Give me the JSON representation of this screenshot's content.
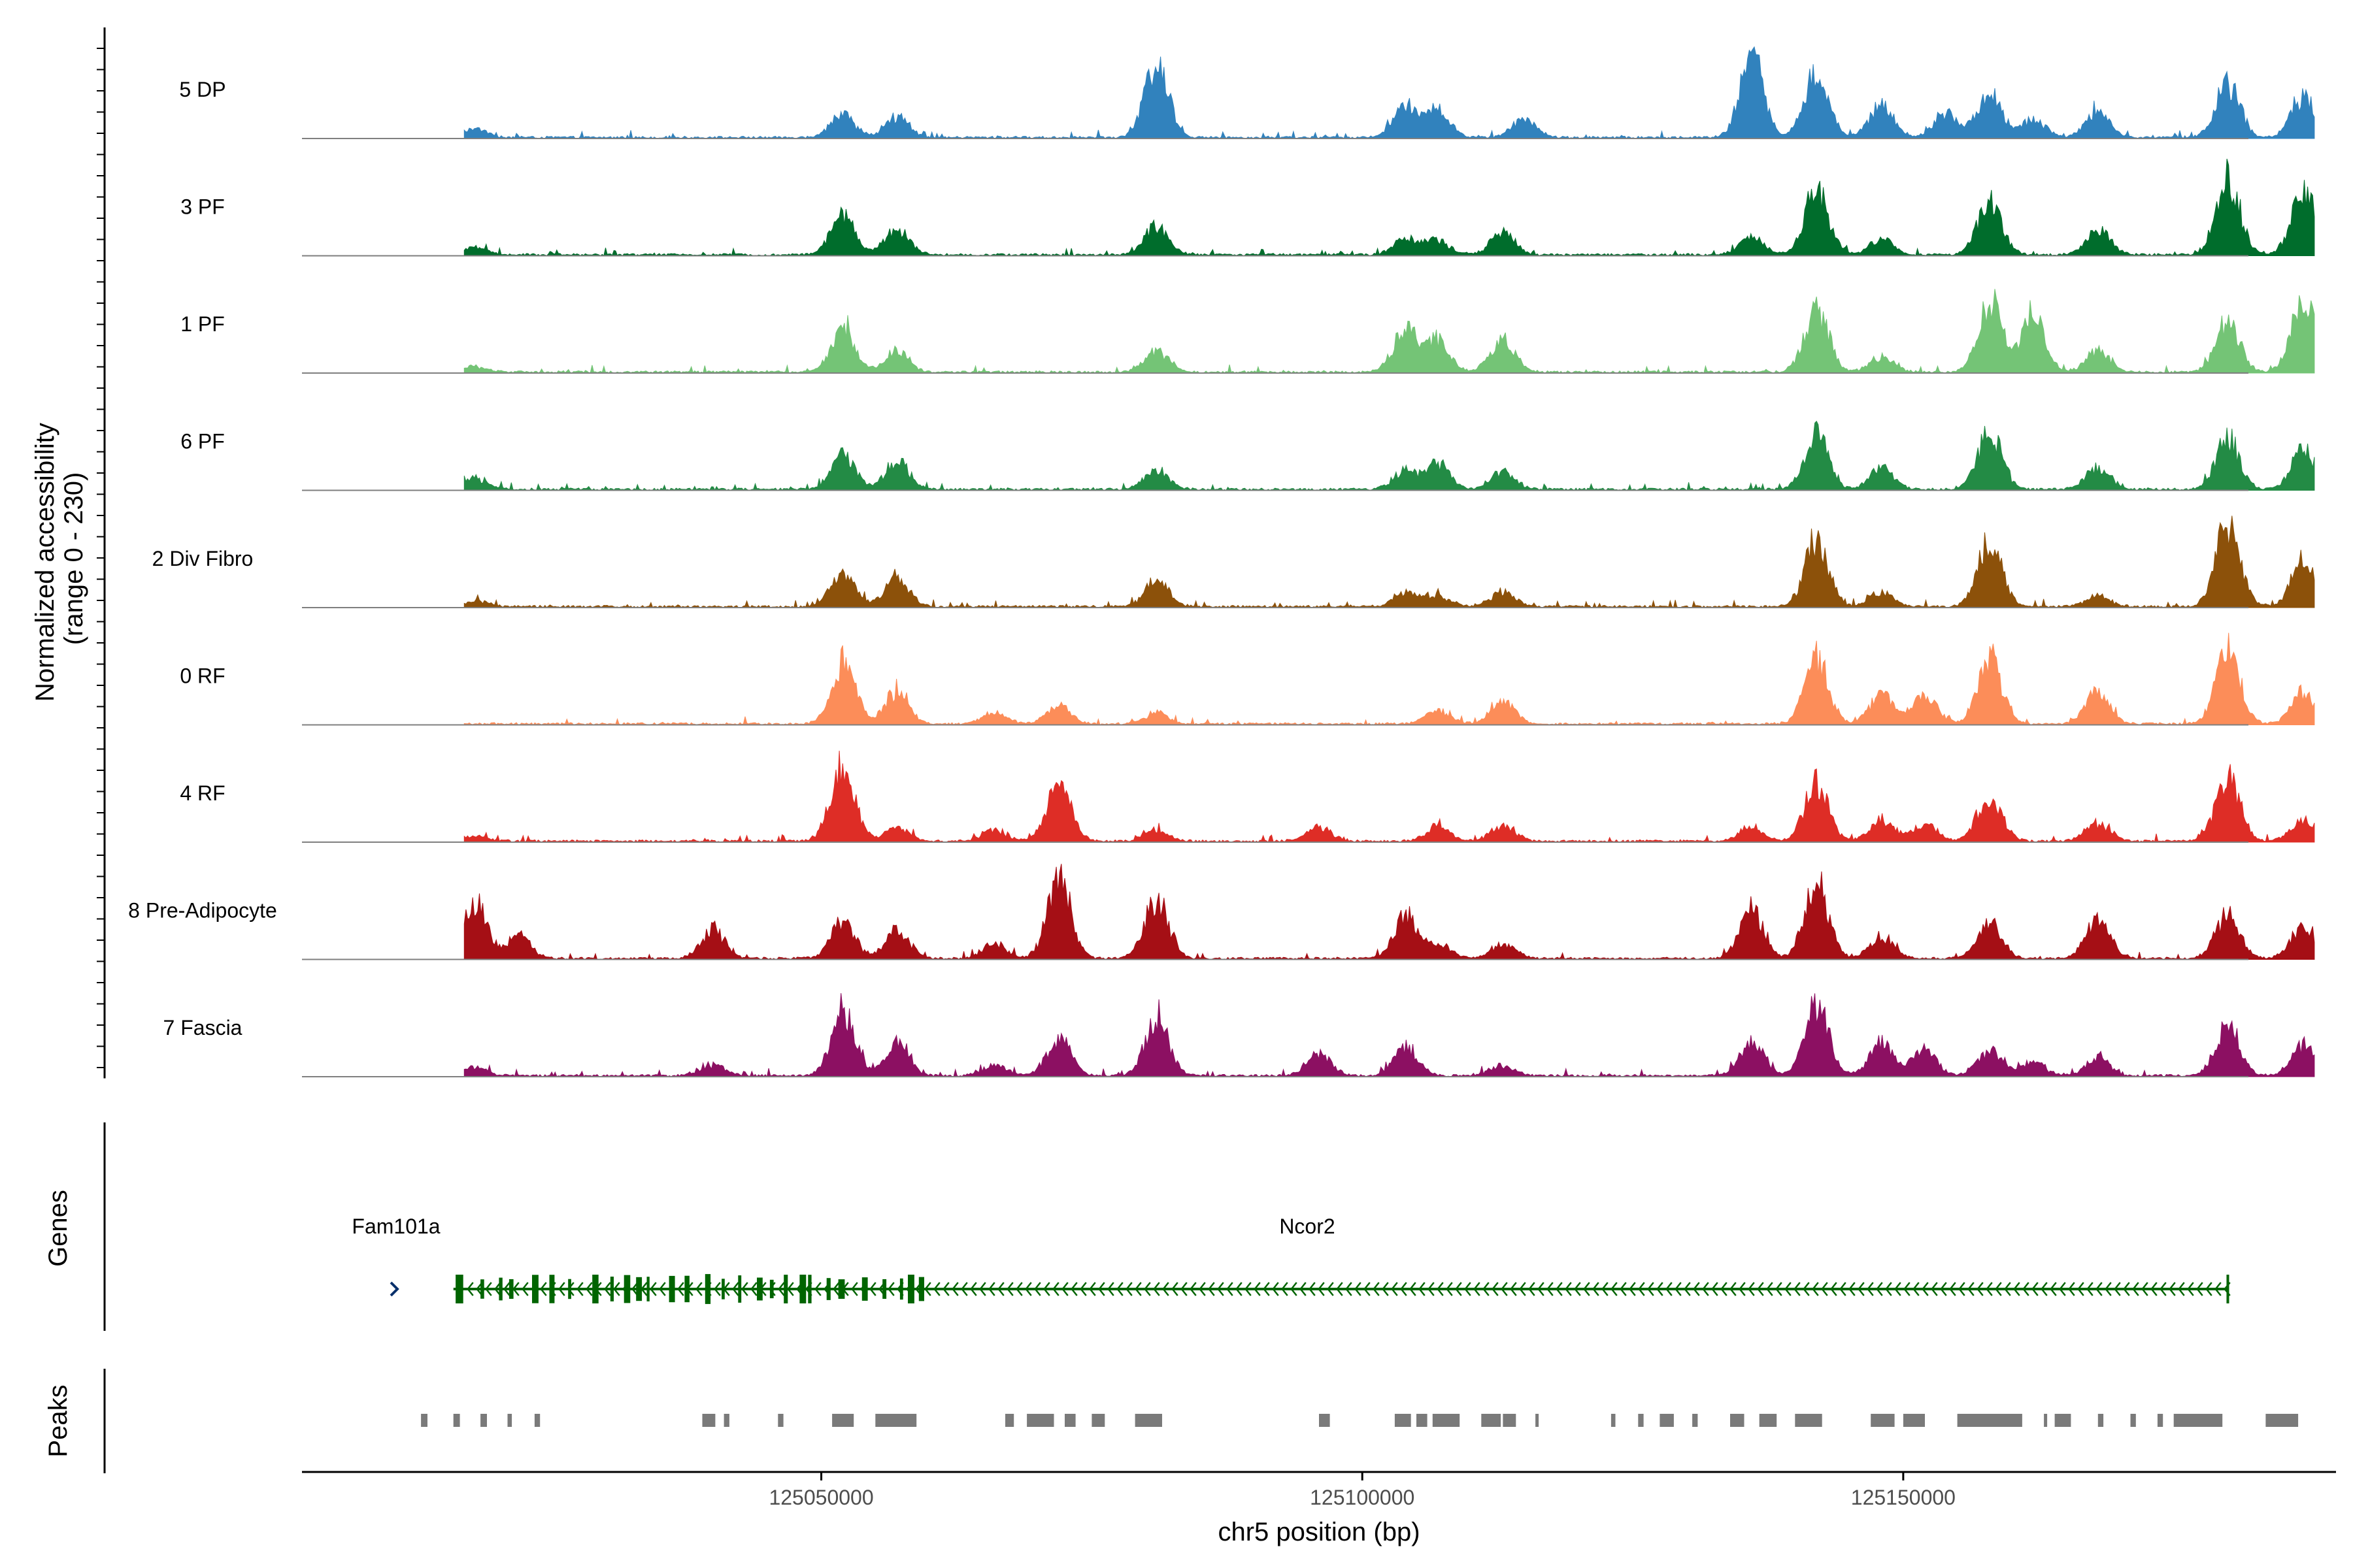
{
  "chart_data": {
    "type": "coverage",
    "title": "",
    "ylabel": "Normalized accessibility\n(range 0 - 230)",
    "xlabel": "chr5 position (bp)",
    "chromosome": "chr5",
    "region": [
      125002000,
      125190000
    ],
    "y_range": [
      0,
      230
    ],
    "x_ticks": [
      125050000,
      125100000,
      125150000
    ],
    "x_tick_labels": [
      "125050000",
      "125100000",
      "125150000"
    ],
    "panel_labels": {
      "genes": "Genes",
      "peaks": "Peaks"
    },
    "tracks": [
      {
        "name": "5 DP",
        "color": "#3182bd",
        "peaks": [
          [
            125018000,
            25
          ],
          [
            125052000,
            60
          ],
          [
            125057000,
            55
          ],
          [
            125081000,
            200
          ],
          [
            125104000,
            90
          ],
          [
            125107000,
            80
          ],
          [
            125115000,
            55
          ],
          [
            125136000,
            220
          ],
          [
            125142000,
            180
          ],
          [
            125148000,
            90
          ],
          [
            125154000,
            70
          ],
          [
            125158000,
            120
          ],
          [
            125162000,
            50
          ],
          [
            125168000,
            70
          ],
          [
            125180000,
            150
          ],
          [
            125187000,
            110
          ]
        ]
      },
      {
        "name": "3 PF",
        "color": "#006d2c",
        "peaks": [
          [
            125018000,
            20
          ],
          [
            125052000,
            110
          ],
          [
            125057000,
            70
          ],
          [
            125081000,
            80
          ],
          [
            125104000,
            45
          ],
          [
            125107000,
            40
          ],
          [
            125113000,
            60
          ],
          [
            125136000,
            50
          ],
          [
            125142000,
            180
          ],
          [
            125148000,
            45
          ],
          [
            125158000,
            150
          ],
          [
            125168000,
            70
          ],
          [
            125180000,
            210
          ],
          [
            125187000,
            180
          ]
        ]
      },
      {
        "name": "1 PF",
        "color": "#74c476",
        "peaks": [
          [
            125018000,
            15
          ],
          [
            125052000,
            120
          ],
          [
            125057000,
            60
          ],
          [
            125081000,
            60
          ],
          [
            125104000,
            120
          ],
          [
            125107000,
            90
          ],
          [
            125113000,
            90
          ],
          [
            125142000,
            170
          ],
          [
            125148000,
            40
          ],
          [
            125158000,
            200
          ],
          [
            125162000,
            160
          ],
          [
            125168000,
            60
          ],
          [
            125180000,
            140
          ],
          [
            125187000,
            200
          ]
        ]
      },
      {
        "name": "6 PF",
        "color": "#238b45",
        "peaks": [
          [
            125018000,
            30
          ],
          [
            125052000,
            100
          ],
          [
            125057000,
            80
          ],
          [
            125081000,
            55
          ],
          [
            125104000,
            50
          ],
          [
            125107000,
            70
          ],
          [
            125113000,
            50
          ],
          [
            125142000,
            150
          ],
          [
            125148000,
            60
          ],
          [
            125158000,
            160
          ],
          [
            125168000,
            60
          ],
          [
            125180000,
            140
          ],
          [
            125187000,
            110
          ]
        ]
      },
      {
        "name": "2 Div Fibro",
        "color": "#8c510a",
        "peaks": [
          [
            125018000,
            15
          ],
          [
            125052000,
            90
          ],
          [
            125057000,
            85
          ],
          [
            125081000,
            70
          ],
          [
            125104000,
            40
          ],
          [
            125107000,
            30
          ],
          [
            125113000,
            40
          ],
          [
            125142000,
            180
          ],
          [
            125148000,
            40
          ],
          [
            125158000,
            180
          ],
          [
            125168000,
            30
          ],
          [
            125180000,
            230
          ],
          [
            125187000,
            130
          ]
        ]
      },
      {
        "name": "0 RF",
        "color": "#fc8d59",
        "peaks": [
          [
            125052000,
            170
          ],
          [
            125057000,
            90
          ],
          [
            125066000,
            30
          ],
          [
            125072000,
            50
          ],
          [
            125081000,
            30
          ],
          [
            125107000,
            40
          ],
          [
            125113000,
            60
          ],
          [
            125142000,
            180
          ],
          [
            125148000,
            80
          ],
          [
            125152000,
            80
          ],
          [
            125158000,
            180
          ],
          [
            125168000,
            90
          ],
          [
            125180000,
            200
          ],
          [
            125187000,
            90
          ]
        ]
      },
      {
        "name": "4 RF",
        "color": "#de2d26",
        "peaks": [
          [
            125018000,
            15
          ],
          [
            125052000,
            210
          ],
          [
            125057000,
            40
          ],
          [
            125066000,
            30
          ],
          [
            125072000,
            150
          ],
          [
            125081000,
            30
          ],
          [
            125096000,
            40
          ],
          [
            125107000,
            40
          ],
          [
            125113000,
            40
          ],
          [
            125136000,
            40
          ],
          [
            125142000,
            160
          ],
          [
            125148000,
            60
          ],
          [
            125152000,
            50
          ],
          [
            125158000,
            130
          ],
          [
            125168000,
            50
          ],
          [
            125180000,
            180
          ],
          [
            125187000,
            60
          ]
        ]
      },
      {
        "name": "8 Pre-Adipocyte",
        "color": "#a50f15",
        "peaks": [
          [
            125018000,
            150
          ],
          [
            125022000,
            60
          ],
          [
            125040000,
            80
          ],
          [
            125052000,
            100
          ],
          [
            125057000,
            80
          ],
          [
            125066000,
            40
          ],
          [
            125072000,
            220
          ],
          [
            125081000,
            160
          ],
          [
            125104000,
            120
          ],
          [
            125107000,
            40
          ],
          [
            125113000,
            40
          ],
          [
            125136000,
            140
          ],
          [
            125142000,
            210
          ],
          [
            125148000,
            60
          ],
          [
            125158000,
            100
          ],
          [
            125168000,
            110
          ],
          [
            125180000,
            120
          ],
          [
            125187000,
            90
          ]
        ]
      },
      {
        "name": "7 Fascia",
        "color": "#8c1062",
        "peaks": [
          [
            125018000,
            25
          ],
          [
            125040000,
            30
          ],
          [
            125052000,
            180
          ],
          [
            125057000,
            90
          ],
          [
            125066000,
            30
          ],
          [
            125072000,
            100
          ],
          [
            125081000,
            160
          ],
          [
            125096000,
            60
          ],
          [
            125104000,
            80
          ],
          [
            125113000,
            30
          ],
          [
            125136000,
            90
          ],
          [
            125142000,
            190
          ],
          [
            125148000,
            90
          ],
          [
            125152000,
            70
          ],
          [
            125158000,
            70
          ],
          [
            125162000,
            40
          ],
          [
            125168000,
            50
          ],
          [
            125180000,
            140
          ],
          [
            125187000,
            80
          ]
        ]
      }
    ],
    "genes": [
      {
        "name": "Fam101a",
        "start": 125008000,
        "end": 125010000,
        "strand": "+",
        "color": "#08306b"
      },
      {
        "name": "Ncor2",
        "start": 125016000,
        "end": 125180000,
        "strand": "-",
        "color": "#006400"
      }
    ],
    "peaks": [
      [
        125013000,
        125013600
      ],
      [
        125016000,
        125016600
      ],
      [
        125018500,
        125019100
      ],
      [
        125021000,
        125021400
      ],
      [
        125023500,
        125024000
      ],
      [
        125039000,
        125040200
      ],
      [
        125041000,
        125041500
      ],
      [
        125046000,
        125046500
      ],
      [
        125051000,
        125053000
      ],
      [
        125055000,
        125058800
      ],
      [
        125067000,
        125067800
      ],
      [
        125069000,
        125071500
      ],
      [
        125072500,
        125073500
      ],
      [
        125075000,
        125076200
      ],
      [
        125079000,
        125081500
      ],
      [
        125096000,
        125097000
      ],
      [
        125103000,
        125104500
      ],
      [
        125105000,
        125106000
      ],
      [
        125106500,
        125109000
      ],
      [
        125111000,
        125112800
      ],
      [
        125113000,
        125114200
      ],
      [
        125116000,
        125116300
      ],
      [
        125123000,
        125123400
      ],
      [
        125125500,
        125126000
      ],
      [
        125127500,
        125128800
      ],
      [
        125130500,
        125131000
      ],
      [
        125134000,
        125135300
      ],
      [
        125136700,
        125138300
      ],
      [
        125140000,
        125142500
      ],
      [
        125147000,
        125149200
      ],
      [
        125150000,
        125152000
      ],
      [
        125155000,
        125161000
      ],
      [
        125163000,
        125163300
      ],
      [
        125164000,
        125165500
      ],
      [
        125168000,
        125168500
      ],
      [
        125171000,
        125171500
      ],
      [
        125173500,
        125174000
      ],
      [
        125175000,
        125179500
      ],
      [
        125183500,
        125186500
      ]
    ]
  }
}
